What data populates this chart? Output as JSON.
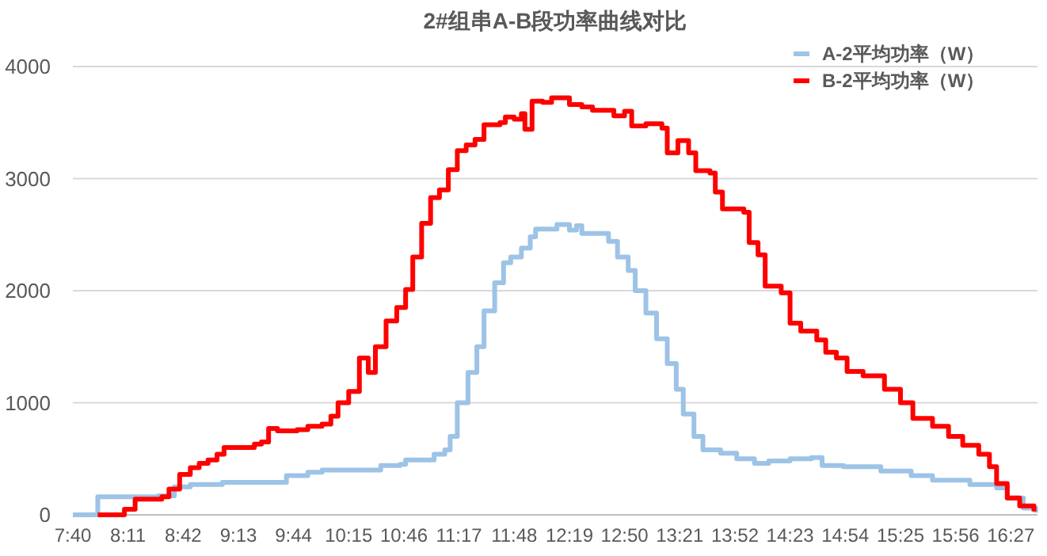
{
  "chart_data": {
    "type": "step",
    "title": "2#组串A-B段功率曲线对比",
    "legend": "top right",
    "grid": "y",
    "xlim": [
      7.667,
      16.7
    ],
    "ylim": [
      0,
      4000
    ],
    "yticks": [
      0,
      1000,
      2000,
      3000,
      4000
    ],
    "xticks": [
      {
        "value": 7.667,
        "label": "7:40"
      },
      {
        "value": 8.183,
        "label": "8:11"
      },
      {
        "value": 8.7,
        "label": "8:42"
      },
      {
        "value": 9.217,
        "label": "9:13"
      },
      {
        "value": 9.733,
        "label": "9:44"
      },
      {
        "value": 10.25,
        "label": "10:15"
      },
      {
        "value": 10.767,
        "label": "10:46"
      },
      {
        "value": 11.283,
        "label": "11:17"
      },
      {
        "value": 11.8,
        "label": "11:48"
      },
      {
        "value": 12.317,
        "label": "12:19"
      },
      {
        "value": 12.833,
        "label": "12:50"
      },
      {
        "value": 13.35,
        "label": "13:21"
      },
      {
        "value": 13.867,
        "label": "13:52"
      },
      {
        "value": 14.383,
        "label": "14:23"
      },
      {
        "value": 14.9,
        "label": "14:54"
      },
      {
        "value": 15.417,
        "label": "15:25"
      },
      {
        "value": 15.933,
        "label": "15:56"
      },
      {
        "value": 16.45,
        "label": "16:27"
      }
    ],
    "series": [
      {
        "name": "A-2平均功率（W）",
        "color": "#9dc3e6",
        "x": [
          7.667,
          7.9,
          8.467,
          8.617,
          8.767,
          9.067,
          9.467,
          9.667,
          9.867,
          10,
          10.4,
          10.55,
          10.733,
          10.783,
          10.95,
          11.05,
          11.15,
          11.2,
          11.267,
          11.367,
          11.45,
          11.517,
          11.617,
          11.7,
          11.767,
          11.867,
          11.95,
          12,
          12.2,
          12.317,
          12.383,
          12.433,
          12.583,
          12.683,
          12.767,
          12.867,
          12.933,
          13.033,
          13.133,
          13.233,
          13.317,
          13.383,
          13.483,
          13.567,
          13.733,
          13.883,
          14.05,
          14.183,
          14.383,
          14.583,
          14.683,
          14.883,
          15.233,
          15.517,
          15.717,
          16.067,
          16.317,
          16.417,
          16.567,
          16.683
        ],
        "values": [
          0,
          160,
          170,
          250,
          270,
          290,
          290,
          350,
          380,
          400,
          400,
          440,
          450,
          490,
          490,
          540,
          580,
          700,
          1000,
          1270,
          1500,
          1820,
          2070,
          2250,
          2300,
          2380,
          2480,
          2550,
          2590,
          2540,
          2580,
          2510,
          2510,
          2440,
          2300,
          2180,
          2000,
          1800,
          1570,
          1350,
          1120,
          900,
          700,
          580,
          550,
          500,
          460,
          480,
          500,
          510,
          440,
          430,
          390,
          350,
          310,
          270,
          240,
          150,
          60,
          20
        ]
      },
      {
        "name": "B-2平均功率（W）",
        "color": "#ff0000",
        "x": [
          7.9,
          8.15,
          8.25,
          8.5,
          8.567,
          8.667,
          8.767,
          8.85,
          8.933,
          9.017,
          9.083,
          9.367,
          9.433,
          9.5,
          9.583,
          9.767,
          9.867,
          10,
          10.083,
          10.15,
          10.25,
          10.35,
          10.433,
          10.5,
          10.6,
          10.7,
          10.783,
          10.85,
          10.933,
          11.017,
          11.1,
          11.183,
          11.267,
          11.35,
          11.433,
          11.517,
          11.667,
          11.717,
          11.8,
          11.867,
          11.9,
          11.967,
          12.067,
          12.15,
          12.317,
          12.433,
          12.533,
          12.733,
          12.833,
          12.9,
          13.033,
          13.183,
          13.233,
          13.333,
          13.433,
          13.5,
          13.633,
          13.683,
          13.75,
          13.95,
          14,
          14.083,
          14.15,
          14.3,
          14.383,
          14.483,
          14.633,
          14.717,
          14.817,
          14.917,
          15.067,
          15.267,
          15.417,
          15.533,
          15.717,
          15.867,
          16,
          16.15,
          16.25,
          16.317,
          16.417,
          16.533,
          16.667
        ],
        "values": [
          0,
          50,
          140,
          160,
          230,
          360,
          420,
          460,
          490,
          540,
          600,
          630,
          650,
          770,
          750,
          760,
          790,
          810,
          880,
          1000,
          1100,
          1400,
          1270,
          1500,
          1730,
          1850,
          2010,
          2300,
          2600,
          2830,
          2900,
          3080,
          3250,
          3300,
          3350,
          3480,
          3500,
          3550,
          3530,
          3580,
          3440,
          3690,
          3680,
          3720,
          3660,
          3640,
          3610,
          3560,
          3600,
          3470,
          3490,
          3450,
          3230,
          3340,
          3230,
          3070,
          3050,
          2880,
          2730,
          2700,
          2430,
          2320,
          2040,
          1980,
          1710,
          1640,
          1560,
          1450,
          1400,
          1280,
          1240,
          1120,
          1000,
          860,
          790,
          700,
          620,
          540,
          430,
          280,
          150,
          80,
          30
        ]
      }
    ]
  }
}
